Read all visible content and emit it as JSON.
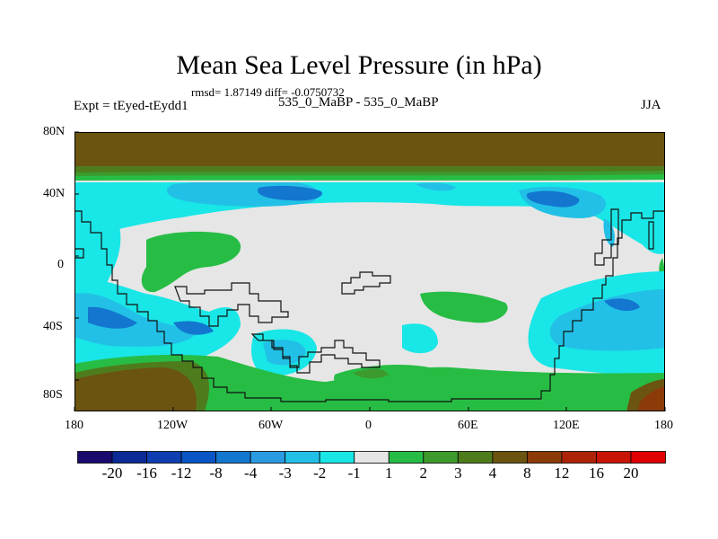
{
  "title": "Mean Sea Level Pressure (in hPa)",
  "stats": "rmsd= 1.87149 diff= -0.0750732",
  "left_label": "Expt = tEyed-tEydd1",
  "center_label": "535_0_MaBP - 535_0_MaBP",
  "right_label": "JJA",
  "y_ticks": [
    "80N",
    "40N",
    "0",
    "40S",
    "80S"
  ],
  "x_ticks": [
    "180",
    "120W",
    "60W",
    "0",
    "60E",
    "120E",
    "180"
  ],
  "colorbar": {
    "labels": [
      "-20",
      "-16",
      "-12",
      "-8",
      "-4",
      "-3",
      "-2",
      "-1",
      "1",
      "2",
      "3",
      "4",
      "8",
      "12",
      "16",
      "20"
    ],
    "colors": [
      "#1a0a6e",
      "#0b2a96",
      "#0e3eb0",
      "#0a55c4",
      "#1376cf",
      "#2a9be0",
      "#22c0e6",
      "#19e6e6",
      "#e6e6e6",
      "#27bd45",
      "#3d9a2d",
      "#4e7c1d",
      "#6b5410",
      "#8b3a08",
      "#ad2306",
      "#c81404",
      "#e00000"
    ]
  },
  "chart_data": {
    "type": "heatmap",
    "title": "Mean Sea Level Pressure (in hPa)",
    "variable": "Mean Sea Level Pressure",
    "units": "hPa",
    "season": "JJA",
    "x_range_lon": [
      -180,
      180
    ],
    "y_range_lat": [
      -90,
      90
    ],
    "contour_levels": [
      -20,
      -16,
      -12,
      -8,
      -4,
      -3,
      -2,
      -1,
      1,
      2,
      3,
      4,
      8,
      12,
      16,
      20
    ],
    "rmsd": 1.87149,
    "diff": -0.0750732
  }
}
